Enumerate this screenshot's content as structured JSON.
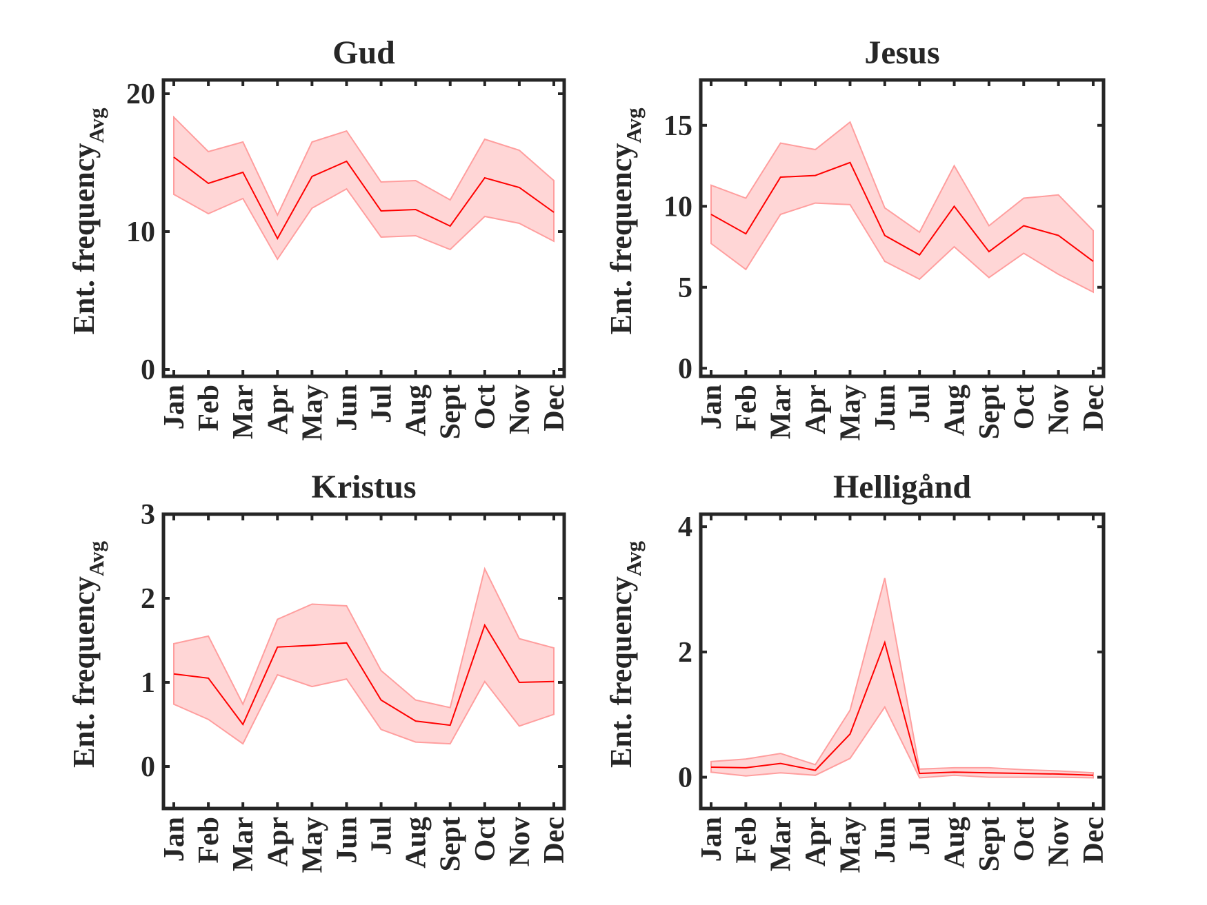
{
  "chart_data": [
    {
      "type": "area",
      "title": "Gud",
      "ylabel": "Ent. frequency",
      "ylabel_sub": "Avg",
      "categories": [
        "Jan",
        "Feb",
        "Mar",
        "Apr",
        "May",
        "Jun",
        "Jul",
        "Aug",
        "Sept",
        "Oct",
        "Nov",
        "Dec"
      ],
      "ylim": [
        -0.5,
        21
      ],
      "yticks": [
        0,
        10,
        20
      ],
      "series": [
        {
          "mean": [
            15.4,
            13.5,
            14.3,
            9.5,
            14.0,
            15.1,
            11.5,
            11.6,
            10.4,
            13.9,
            13.2,
            11.4
          ],
          "upper": [
            18.3,
            15.8,
            16.5,
            11.2,
            16.5,
            17.3,
            13.6,
            13.7,
            12.3,
            16.7,
            15.9,
            13.7
          ],
          "lower": [
            12.7,
            11.3,
            12.4,
            8.0,
            11.7,
            13.1,
            9.6,
            9.7,
            8.7,
            11.1,
            10.6,
            9.3
          ]
        }
      ],
      "colors": {
        "mean": "#ff0000",
        "band": "#ffd6d6",
        "band_edge": "#ff9e9e"
      }
    },
    {
      "type": "area",
      "title": "Jesus",
      "ylabel": "Ent. frequency",
      "ylabel_sub": "Avg",
      "categories": [
        "Jan",
        "Feb",
        "Mar",
        "Apr",
        "May",
        "Jun",
        "Jul",
        "Aug",
        "Sept",
        "Oct",
        "Nov",
        "Dec"
      ],
      "ylim": [
        -0.5,
        17.8
      ],
      "yticks": [
        0,
        5,
        10,
        15
      ],
      "series": [
        {
          "mean": [
            9.5,
            8.3,
            11.8,
            11.9,
            12.7,
            8.2,
            7.0,
            10.0,
            7.2,
            8.8,
            8.2,
            6.6
          ],
          "upper": [
            11.3,
            10.5,
            13.9,
            13.5,
            15.2,
            9.9,
            8.4,
            12.5,
            8.8,
            10.5,
            10.7,
            8.5
          ],
          "lower": [
            7.7,
            6.1,
            9.5,
            10.2,
            10.1,
            6.6,
            5.5,
            7.5,
            5.6,
            7.1,
            5.8,
            4.7
          ]
        }
      ],
      "colors": {
        "mean": "#ff0000",
        "band": "#ffd6d6",
        "band_edge": "#ff9e9e"
      }
    },
    {
      "type": "area",
      "title": "Kristus",
      "ylabel": "Ent. frequency",
      "ylabel_sub": "Avg",
      "categories": [
        "Jan",
        "Feb",
        "Mar",
        "Apr",
        "May",
        "Jun",
        "Jul",
        "Aug",
        "Sept",
        "Oct",
        "Nov",
        "Dec"
      ],
      "ylim": [
        -0.5,
        3
      ],
      "yticks": [
        0,
        1,
        2,
        3
      ],
      "series": [
        {
          "mean": [
            1.1,
            1.05,
            0.5,
            1.42,
            1.44,
            1.47,
            0.79,
            0.54,
            0.49,
            1.68,
            1.0,
            1.01
          ],
          "upper": [
            1.46,
            1.55,
            0.74,
            1.75,
            1.93,
            1.91,
            1.14,
            0.79,
            0.7,
            2.35,
            1.52,
            1.41
          ],
          "lower": [
            0.74,
            0.56,
            0.27,
            1.09,
            0.95,
            1.04,
            0.44,
            0.29,
            0.27,
            1.01,
            0.48,
            0.62
          ]
        }
      ],
      "colors": {
        "mean": "#ff0000",
        "band": "#ffd6d6",
        "band_edge": "#ff9e9e"
      }
    },
    {
      "type": "area",
      "title": "Helligånd",
      "ylabel": "Ent. frequency",
      "ylabel_sub": "Avg",
      "categories": [
        "Jan",
        "Feb",
        "Mar",
        "Apr",
        "May",
        "Jun",
        "Jul",
        "Aug",
        "Sept",
        "Oct",
        "Nov",
        "Dec"
      ],
      "ylim": [
        -0.5,
        4.2
      ],
      "yticks": [
        0,
        2,
        4
      ],
      "series": [
        {
          "mean": [
            0.16,
            0.15,
            0.22,
            0.11,
            0.69,
            2.15,
            0.06,
            0.08,
            0.07,
            0.06,
            0.05,
            0.03
          ],
          "upper": [
            0.25,
            0.29,
            0.38,
            0.2,
            1.07,
            3.18,
            0.13,
            0.15,
            0.15,
            0.12,
            0.1,
            0.07
          ],
          "lower": [
            0.08,
            0.02,
            0.07,
            0.03,
            0.3,
            1.12,
            -0.01,
            0.03,
            0.0,
            0.0,
            0.0,
            -0.01
          ]
        }
      ],
      "colors": {
        "mean": "#ff0000",
        "band": "#ffd6d6",
        "band_edge": "#ff9e9e"
      }
    }
  ]
}
